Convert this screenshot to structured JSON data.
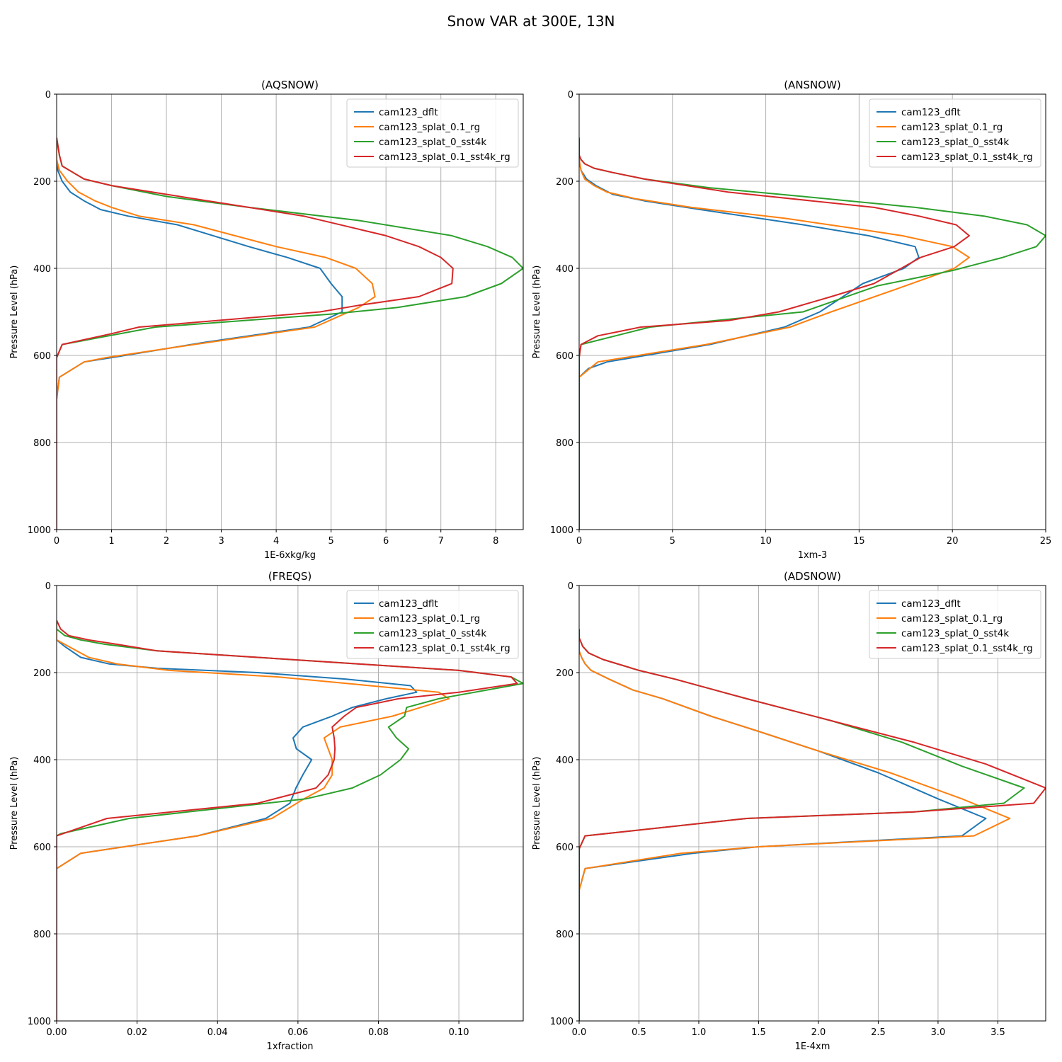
{
  "figure": {
    "suptitle": "Snow VAR at 300E, 13N"
  },
  "colors": {
    "cam123_dflt": "#1f77b4",
    "cam123_splat_0.1_rg": "#ff7f0e",
    "cam123_splat_0_sst4k": "#2ca02c",
    "cam123_splat_0.1_sst4k_rg": "#d62728",
    "grid": "#b0b0b0"
  },
  "chart_data": [
    {
      "type": "line",
      "title": "(AQSNOW)",
      "xlabel": "1E-6xkg/kg",
      "ylabel": "Pressure Level (hPa)",
      "xlim": [
        0,
        8.5
      ],
      "ylim": [
        1000,
        0
      ],
      "y_inverted": true,
      "grid": true,
      "legend": "top-right",
      "xticks": [
        0,
        1,
        2,
        3,
        4,
        5,
        6,
        7,
        8
      ],
      "yticks": [
        0,
        200,
        400,
        600,
        800,
        1000
      ],
      "series": [
        {
          "name": "cam123_dflt",
          "x": [
            0,
            0,
            0.02,
            0.1,
            0.25,
            0.5,
            0.8,
            1.3,
            2.2,
            3.5,
            4.2,
            4.8,
            5.0,
            5.2,
            5.2,
            4.6,
            2.7,
            1.0,
            0.5,
            0.05,
            0,
            0,
            0
          ],
          "y": [
            100,
            150,
            175,
            200,
            225,
            245,
            265,
            280,
            300,
            350,
            375,
            400,
            435,
            465,
            500,
            535,
            570,
            605,
            615,
            650,
            700,
            800,
            1000
          ]
        },
        {
          "name": "cam123_splat_0.1_rg",
          "x": [
            0,
            0,
            0.05,
            0.2,
            0.4,
            0.7,
            1.0,
            1.5,
            2.5,
            4.0,
            4.9,
            5.45,
            5.75,
            5.8,
            5.5,
            4.7,
            2.5,
            0.9,
            0.5,
            0.05,
            0,
            0,
            0
          ],
          "y": [
            100,
            150,
            175,
            200,
            225,
            245,
            260,
            280,
            300,
            350,
            375,
            400,
            435,
            465,
            490,
            535,
            575,
            605,
            615,
            650,
            700,
            800,
            1000
          ]
        },
        {
          "name": "cam123_splat_0_sst4k",
          "x": [
            0,
            0.05,
            0.1,
            0.3,
            0.5,
            1.0,
            2.0,
            3.5,
            5.5,
            7.2,
            7.85,
            8.3,
            8.5,
            8.1,
            7.45,
            6.2,
            5.0,
            1.8,
            0.1,
            0,
            0,
            0
          ],
          "y": [
            100,
            140,
            165,
            180,
            195,
            210,
            235,
            260,
            290,
            325,
            350,
            375,
            400,
            435,
            465,
            490,
            505,
            535,
            575,
            605,
            700,
            1000
          ]
        },
        {
          "name": "cam123_splat_0.1_sst4k_rg",
          "x": [
            0,
            0.05,
            0.1,
            0.3,
            0.5,
            1.0,
            2.0,
            3.0,
            4.5,
            6.0,
            6.6,
            7.0,
            7.22,
            7.2,
            6.6,
            5.5,
            4.8,
            1.5,
            1.0,
            0.1,
            0,
            0,
            0
          ],
          "y": [
            100,
            140,
            165,
            180,
            195,
            210,
            230,
            250,
            280,
            325,
            350,
            375,
            400,
            435,
            465,
            485,
            500,
            535,
            550,
            575,
            605,
            700,
            1000
          ]
        }
      ]
    },
    {
      "type": "line",
      "title": "(ANSNOW)",
      "xlabel": "1xm-3",
      "ylabel": "Pressure Level (hPa)",
      "xlim": [
        0,
        25
      ],
      "ylim": [
        1000,
        0
      ],
      "y_inverted": true,
      "grid": true,
      "legend": "top-right",
      "xticks": [
        0,
        5,
        10,
        15,
        20,
        25
      ],
      "yticks": [
        0,
        200,
        400,
        600,
        800,
        1000
      ],
      "series": [
        {
          "name": "cam123_dflt",
          "x": [
            0,
            0,
            0.1,
            0.4,
            0.9,
            1.8,
            3.5,
            6.5,
            12,
            15.5,
            18.0,
            18.2,
            17.4,
            15.2,
            12.9,
            11.0,
            7.0,
            1.5,
            0.5,
            0,
            0,
            0
          ],
          "y": [
            100,
            150,
            175,
            195,
            210,
            230,
            245,
            265,
            300,
            325,
            350,
            375,
            400,
            435,
            500,
            535,
            575,
            615,
            630,
            650,
            800,
            1000
          ]
        },
        {
          "name": "cam123_splat_0.1_rg",
          "x": [
            0,
            0,
            0.1,
            0.3,
            0.8,
            1.5,
            3.0,
            6.0,
            11.0,
            15.0,
            17.3,
            20.0,
            20.9,
            20.1,
            17.5,
            13.5,
            11.3,
            6.8,
            1.0,
            0,
            0,
            0
          ],
          "y": [
            100,
            150,
            175,
            195,
            210,
            225,
            240,
            260,
            285,
            310,
            325,
            350,
            375,
            400,
            440,
            500,
            535,
            575,
            615,
            650,
            800,
            1000
          ]
        },
        {
          "name": "cam123_splat_0_sst4k",
          "x": [
            0,
            0,
            0.1,
            0.3,
            0.8,
            1.8,
            3.5,
            7.0,
            12.0,
            18.0,
            21.7,
            24.0,
            25.0,
            24.5,
            22.7,
            20.0,
            16.0,
            12.0,
            3.8,
            0.1,
            0,
            0,
            0
          ],
          "y": [
            100,
            140,
            150,
            160,
            170,
            180,
            195,
            215,
            235,
            260,
            280,
            300,
            325,
            350,
            375,
            405,
            440,
            500,
            535,
            575,
            605,
            800,
            1000
          ]
        },
        {
          "name": "cam123_splat_0.1_sst4k_rg",
          "x": [
            0,
            0,
            0.1,
            0.3,
            0.8,
            1.8,
            3.5,
            8.0,
            15.8,
            18.2,
            20.2,
            20.9,
            20.1,
            18.3,
            15.8,
            13.5,
            10.7,
            8.0,
            3.3,
            1.0,
            0.1,
            0,
            0,
            0
          ],
          "y": [
            100,
            140,
            150,
            160,
            170,
            180,
            195,
            225,
            260,
            280,
            300,
            325,
            350,
            375,
            435,
            465,
            500,
            520,
            535,
            555,
            575,
            605,
            800,
            1000
          ]
        }
      ]
    },
    {
      "type": "line",
      "title": "(FREQS)",
      "xlabel": "1xfraction",
      "ylabel": "Pressure Level (hPa)",
      "xlim": [
        0,
        0.116
      ],
      "ylim": [
        1000,
        0
      ],
      "y_inverted": true,
      "grid": true,
      "legend": "top-right",
      "xticks": [
        0,
        0.02,
        0.04,
        0.06,
        0.08,
        0.1
      ],
      "yticks": [
        0,
        200,
        400,
        600,
        800,
        1000
      ],
      "series": [
        {
          "name": "cam123_dflt",
          "x": [
            0,
            0,
            0.002,
            0.006,
            0.013,
            0.025,
            0.05,
            0.072,
            0.088,
            0.0895,
            0.082,
            0.0735,
            0.0685,
            0.0612,
            0.0588,
            0.0596,
            0.0634,
            0.0612,
            0.0595,
            0.058,
            0.052,
            0.035,
            0.006,
            0,
            0,
            0
          ],
          "y": [
            100,
            125,
            140,
            165,
            180,
            190,
            200,
            215,
            230,
            245,
            260,
            280,
            300,
            325,
            350,
            375,
            400,
            435,
            465,
            500,
            535,
            575,
            615,
            650,
            800,
            1000
          ]
        },
        {
          "name": "cam123_splat_0.1_rg",
          "x": [
            0,
            0,
            0.003,
            0.008,
            0.015,
            0.028,
            0.055,
            0.078,
            0.095,
            0.0975,
            0.0905,
            0.0835,
            0.0705,
            0.0665,
            0.0675,
            0.0685,
            0.0685,
            0.0665,
            0.0615,
            0.0535,
            0.035,
            0.006,
            0,
            0,
            0
          ],
          "y": [
            100,
            125,
            140,
            165,
            180,
            195,
            210,
            230,
            245,
            260,
            280,
            300,
            325,
            350,
            375,
            400,
            435,
            465,
            490,
            535,
            575,
            615,
            650,
            800,
            1000
          ]
        },
        {
          "name": "cam123_splat_0_sst4k",
          "x": [
            0,
            0,
            0.002,
            0.006,
            0.012,
            0.025,
            0.05,
            0.075,
            0.1,
            0.113,
            0.116,
            0.095,
            0.087,
            0.0865,
            0.0825,
            0.0845,
            0.0875,
            0.0855,
            0.0805,
            0.0735,
            0.062,
            0.018,
            0.001,
            0,
            0,
            0
          ],
          "y": [
            80,
            100,
            115,
            125,
            135,
            150,
            165,
            180,
            195,
            210,
            225,
            260,
            280,
            300,
            325,
            350,
            375,
            400,
            435,
            465,
            490,
            535,
            570,
            575,
            800,
            1000
          ]
        },
        {
          "name": "cam123_splat_0.1_sst4k_rg",
          "x": [
            0,
            0.001,
            0.003,
            0.008,
            0.015,
            0.025,
            0.05,
            0.075,
            0.1,
            0.113,
            0.1145,
            0.1,
            0.085,
            0.0745,
            0.0715,
            0.0685,
            0.069,
            0.0692,
            0.069,
            0.0675,
            0.0645,
            0.05,
            0.0125,
            0,
            0,
            0
          ],
          "y": [
            80,
            100,
            115,
            125,
            135,
            150,
            165,
            180,
            195,
            210,
            225,
            245,
            260,
            280,
            300,
            325,
            350,
            375,
            400,
            435,
            465,
            500,
            535,
            575,
            800,
            1000
          ]
        }
      ]
    },
    {
      "type": "line",
      "title": "(ADSNOW)",
      "xlabel": "1E-4xm",
      "ylabel": "Pressure Level (hPa)",
      "xlim": [
        0,
        3.9
      ],
      "ylim": [
        1000,
        0
      ],
      "y_inverted": true,
      "grid": true,
      "legend": "top-right",
      "xticks": [
        0.0,
        0.5,
        1.0,
        1.5,
        2.0,
        2.5,
        3.0,
        3.5
      ],
      "yticks": [
        0,
        200,
        400,
        600,
        800,
        1000
      ],
      "series": [
        {
          "name": "cam123_dflt",
          "x": [
            0,
            0,
            0.02,
            0.05,
            0.1,
            0.25,
            0.45,
            0.7,
            1.1,
            1.5,
            2.0,
            2.5,
            3.0,
            3.4,
            3.2,
            1.5,
            0.95,
            0.05,
            0,
            0,
            0
          ],
          "y": [
            100,
            150,
            165,
            180,
            195,
            215,
            240,
            260,
            300,
            335,
            380,
            430,
            490,
            535,
            575,
            600,
            615,
            650,
            700,
            800,
            1000
          ]
        },
        {
          "name": "cam123_splat_0.1_rg",
          "x": [
            0,
            0,
            0.02,
            0.05,
            0.1,
            0.25,
            0.45,
            0.7,
            1.1,
            1.5,
            2.0,
            2.6,
            3.2,
            3.6,
            3.3,
            1.5,
            0.85,
            0.05,
            0,
            0,
            0
          ],
          "y": [
            100,
            150,
            165,
            180,
            195,
            215,
            240,
            260,
            300,
            335,
            380,
            430,
            490,
            535,
            575,
            600,
            615,
            650,
            700,
            800,
            1000
          ]
        },
        {
          "name": "cam123_splat_0_sst4k",
          "x": [
            0,
            0,
            0.03,
            0.08,
            0.2,
            0.5,
            0.8,
            1.4,
            2.1,
            2.7,
            3.2,
            3.72,
            3.55,
            2.8,
            1.4,
            0.05,
            0,
            0,
            0
          ],
          "y": [
            100,
            120,
            140,
            155,
            170,
            195,
            215,
            260,
            310,
            360,
            415,
            465,
            500,
            520,
            535,
            575,
            605,
            800,
            1000
          ]
        },
        {
          "name": "cam123_splat_0.1_sst4k_rg",
          "x": [
            0,
            0,
            0.03,
            0.08,
            0.2,
            0.5,
            0.8,
            1.4,
            2.1,
            2.8,
            3.4,
            3.9,
            3.8,
            2.8,
            1.4,
            0.05,
            0,
            0,
            0
          ],
          "y": [
            100,
            120,
            140,
            155,
            170,
            195,
            215,
            260,
            310,
            360,
            410,
            465,
            500,
            520,
            535,
            575,
            605,
            800,
            1000
          ]
        }
      ]
    }
  ]
}
